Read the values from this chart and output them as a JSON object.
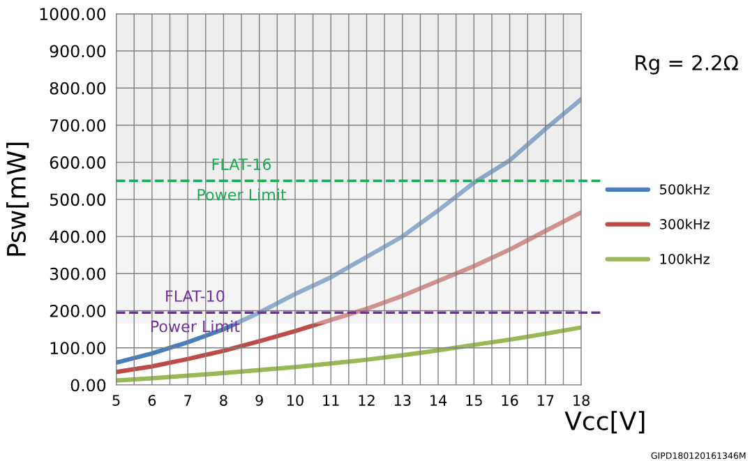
{
  "chart_data": {
    "type": "line",
    "xlabel": "Vcc[V]",
    "ylabel": "Psw[mW]",
    "x": [
      5,
      6,
      7,
      8,
      9,
      10,
      11,
      12,
      13,
      14,
      15,
      16,
      17,
      18
    ],
    "series": [
      {
        "name": "500kHz",
        "color": "#4a7ebb",
        "values": [
          60,
          85,
          115,
          150,
          195,
          245,
          290,
          345,
          400,
          470,
          545,
          605,
          690,
          770
        ]
      },
      {
        "name": "300kHz",
        "color": "#be4b48",
        "values": [
          35,
          50,
          70,
          92,
          118,
          145,
          175,
          205,
          240,
          280,
          320,
          365,
          415,
          465
        ]
      },
      {
        "name": "100kHz",
        "color": "#98b954",
        "values": [
          12,
          18,
          25,
          32,
          40,
          48,
          58,
          68,
          80,
          93,
          108,
          122,
          138,
          155
        ]
      }
    ],
    "xlim": [
      5,
      18
    ],
    "xticks": [
      5,
      {
        "value": 5.5,
        "label": null
      },
      6,
      {
        "value": 6.5,
        "label": null
      },
      7,
      {
        "value": 7.5,
        "label": null
      },
      8,
      {
        "value": 8.5,
        "label": null
      },
      9,
      {
        "value": 9.5,
        "label": null
      },
      10,
      {
        "value": 10.5,
        "label": null
      },
      11,
      {
        "value": 11.5,
        "label": null
      },
      12,
      {
        "value": 12.5,
        "label": null
      },
      13,
      {
        "value": 13.5,
        "label": null
      },
      14,
      {
        "value": 14.5,
        "label": null
      },
      15,
      {
        "value": 15.5,
        "label": null
      },
      16,
      {
        "value": 16.5,
        "label": null
      },
      17,
      {
        "value": 17.5,
        "label": null
      },
      18
    ],
    "ylim": [
      0,
      1000
    ],
    "yticks": [
      {
        "value": 0,
        "label": "0.00"
      },
      {
        "value": 100,
        "label": "100.00"
      },
      {
        "value": 200,
        "label": "200.00"
      },
      {
        "value": 300,
        "label": "300.00"
      },
      {
        "value": 400,
        "label": "400.00"
      },
      {
        "value": 500,
        "label": "500.00"
      },
      {
        "value": 600,
        "label": "600.00"
      },
      {
        "value": 700,
        "label": "700.00"
      },
      {
        "value": 800,
        "label": "800.00"
      },
      {
        "value": 900,
        "label": "900.00"
      },
      {
        "value": 1000,
        "label": "1000.00"
      }
    ],
    "grid": true,
    "legend": "right",
    "line_style": "solid",
    "marker": "none",
    "bands": [
      {
        "axis": "y",
        "from": 540,
        "to": 1000,
        "color": "#d9d9d9"
      },
      {
        "axis": "y",
        "from": 165,
        "to": 540,
        "color": "#e6e6e6"
      }
    ],
    "ref_lines": [
      {
        "axis": "y",
        "value": 550,
        "label": "FLAT-16\nPower Limit",
        "color": "#1aab55",
        "line_style": "dashed"
      },
      {
        "axis": "y",
        "value": 195,
        "label": "FLAT-10\nPower Limit",
        "color": "#7030a0",
        "line_style": "dashed"
      }
    ],
    "annotations": [
      "Rg = 2.2Ω",
      "GIPD180120161346M"
    ]
  }
}
